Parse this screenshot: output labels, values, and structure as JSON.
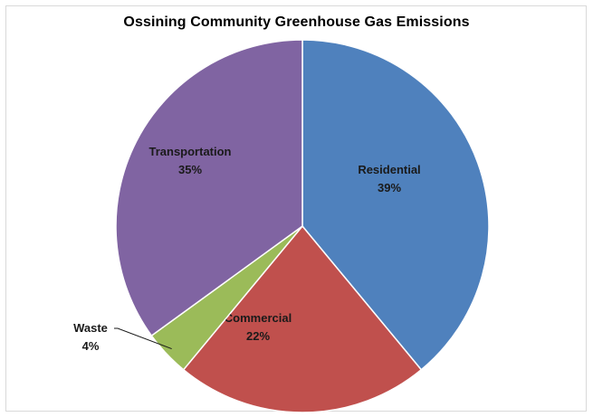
{
  "chart_data": {
    "type": "pie",
    "title": "Ossining Community Greenhouse Gas Emissions",
    "slices": [
      {
        "label": "Residential",
        "value": 39,
        "value_label": "39%",
        "color": "#4f81bd"
      },
      {
        "label": "Commercial",
        "value": 22,
        "value_label": "22%",
        "color": "#c0504d"
      },
      {
        "label": "Waste",
        "value": 4,
        "value_label": "4%",
        "color": "#9bbb59"
      },
      {
        "label": "Transportation",
        "value": 35,
        "value_label": "35%",
        "color": "#8064a2"
      }
    ],
    "start_angle": "12 o'clock",
    "direction": "clockwise",
    "label_placement": "inside",
    "legend": "none"
  }
}
